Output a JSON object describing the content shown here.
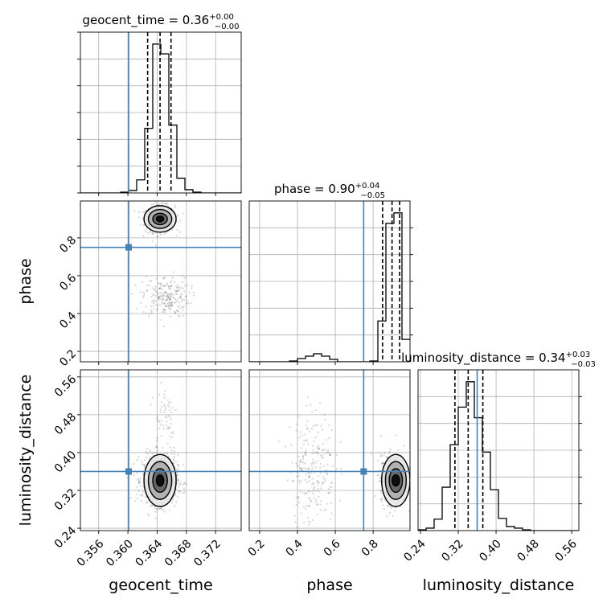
{
  "chart_data": {
    "type": "corner",
    "parameters": [
      "geocent_time",
      "phase",
      "luminosity_distance"
    ],
    "axis_labels": {
      "geocent_time": "geocent_time",
      "phase": "phase",
      "luminosity_distance": "luminosity_distance"
    },
    "ranges": {
      "geocent_time": [
        0.3535,
        0.3755
      ],
      "phase": [
        0.145,
        0.995
      ],
      "luminosity_distance": [
        0.235,
        0.575
      ]
    },
    "ticks": {
      "geocent_time": [
        0.356,
        0.36,
        0.364,
        0.368,
        0.372
      ],
      "phase": [
        0.2,
        0.4,
        0.6,
        0.8
      ],
      "luminosity_distance": [
        0.24,
        0.32,
        0.4,
        0.48,
        0.56
      ]
    },
    "truths": {
      "geocent_time": 0.3601,
      "phase": 0.75,
      "luminosity_distance": 0.36
    },
    "truth_color": "#4682b4",
    "grid": true,
    "titles": [
      {
        "param": "geocent_time",
        "median": "0.36",
        "plus": "+0.00",
        "minus": "−0.00"
      },
      {
        "param": "phase",
        "median": "0.90",
        "plus": "+0.04",
        "minus": "−0.05"
      },
      {
        "param": "luminosity_distance",
        "median": "0.34",
        "plus": "+0.03",
        "minus": "−0.03"
      }
    ],
    "histograms": {
      "geocent_time": {
        "bin_edges": [
          0.3535,
          0.3546,
          0.3557,
          0.3568,
          0.3579,
          0.359,
          0.3601,
          0.3612,
          0.3623,
          0.3634,
          0.3645,
          0.3656,
          0.3667,
          0.3678,
          0.3689,
          0.37,
          0.3711,
          0.3722,
          0.3733,
          0.3744,
          0.3755
        ],
        "counts": [
          0,
          0,
          0,
          0,
          0,
          1,
          3,
          16,
          79,
          182,
          170,
          83,
          18,
          4,
          1,
          0,
          0,
          0,
          0,
          0
        ],
        "quantiles": [
          0.3627,
          0.3644,
          0.3659
        ]
      },
      "phase": {
        "bin_edges": [
          0.145,
          0.1875,
          0.23,
          0.2725,
          0.315,
          0.3575,
          0.4,
          0.4425,
          0.485,
          0.5275,
          0.57,
          0.6125,
          0.655,
          0.6975,
          0.74,
          0.7825,
          0.825,
          0.8675,
          0.91,
          0.9525,
          0.995
        ],
        "counts": [
          0,
          0,
          0,
          0,
          0,
          1,
          4,
          7,
          10,
          7,
          3,
          0,
          0,
          0,
          0,
          1,
          51,
          173,
          186,
          28
        ],
        "quantiles": [
          0.85,
          0.9,
          0.94
        ]
      },
      "luminosity_distance": {
        "bin_edges": [
          0.235,
          0.252,
          0.269,
          0.286,
          0.303,
          0.32,
          0.337,
          0.354,
          0.371,
          0.388,
          0.405,
          0.422,
          0.439,
          0.456,
          0.473,
          0.49,
          0.507,
          0.524,
          0.541,
          0.558,
          0.575
        ],
        "counts": [
          1,
          3,
          14,
          53,
          105,
          151,
          182,
          138,
          96,
          50,
          15,
          5,
          3,
          1,
          0,
          0,
          0,
          0,
          0,
          0
        ],
        "quantiles": [
          0.313,
          0.341,
          0.372
        ]
      }
    },
    "contours": {
      "phase_vs_geocent_time": {
        "clusters": [
          {
            "mean": [
              0.3644,
              0.9
            ],
            "sd": [
              0.001,
              0.035
            ],
            "n": 620
          },
          {
            "mean": [
              0.3652,
              0.49
            ],
            "sd": [
              0.0016,
              0.055
            ],
            "n": 230
          }
        ],
        "levels": [
          {
            "center": [
              0.3644,
              0.9
            ],
            "radii": [
              0.0005,
              0.015
            ]
          },
          {
            "center": [
              0.3644,
              0.9
            ],
            "radii": [
              0.001,
              0.03
            ]
          },
          {
            "center": [
              0.3644,
              0.9
            ],
            "radii": [
              0.0016,
              0.05
            ]
          },
          {
            "center": [
              0.3644,
              0.9
            ],
            "radii": [
              0.0022,
              0.07
            ]
          }
        ]
      },
      "luminosity_distance_vs_geocent_time": {
        "clusters": [
          {
            "mean": [
              0.3644,
              0.343
            ],
            "sd": [
              0.0012,
              0.026
            ],
            "n": 850
          },
          {
            "mean": [
              0.365,
              0.48
            ],
            "sd": [
              0.0009,
              0.04
            ],
            "n": 60
          }
        ],
        "levels": [
          {
            "center": [
              0.3644,
              0.341
            ],
            "radii": [
              0.0005,
              0.012
            ]
          },
          {
            "center": [
              0.3644,
              0.341
            ],
            "radii": [
              0.001,
              0.025
            ]
          },
          {
            "center": [
              0.3644,
              0.341
            ],
            "radii": [
              0.0016,
              0.04
            ]
          },
          {
            "center": [
              0.3644,
              0.341
            ],
            "radii": [
              0.0022,
              0.055
            ]
          }
        ]
      },
      "luminosity_distance_vs_phase": {
        "clusters": [
          {
            "mean": [
              0.91,
              0.343
            ],
            "sd": [
              0.035,
              0.026
            ],
            "n": 620
          },
          {
            "mean": [
              0.48,
              0.37
            ],
            "sd": [
              0.06,
              0.06
            ],
            "n": 230
          }
        ],
        "levels": [
          {
            "center": [
              0.92,
              0.341
            ],
            "radii": [
              0.02,
              0.012
            ]
          },
          {
            "center": [
              0.92,
              0.341
            ],
            "radii": [
              0.035,
              0.025
            ]
          },
          {
            "center": [
              0.92,
              0.341
            ],
            "radii": [
              0.055,
              0.04
            ]
          },
          {
            "center": [
              0.92,
              0.341
            ],
            "radii": [
              0.075,
              0.055
            ]
          }
        ]
      }
    }
  }
}
